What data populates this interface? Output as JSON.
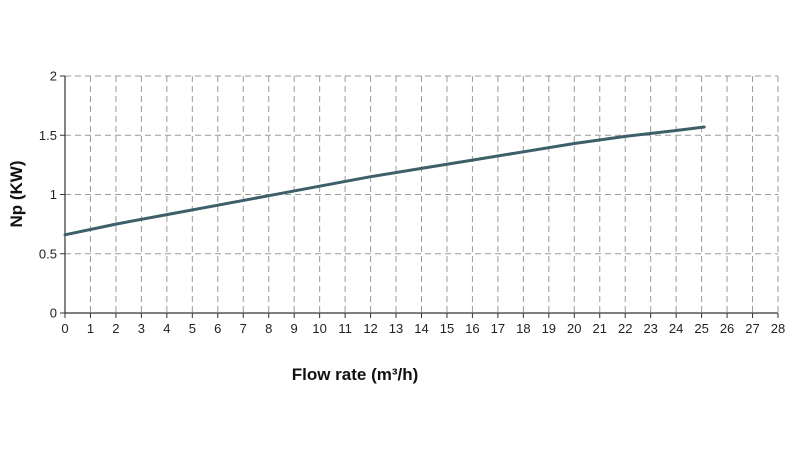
{
  "chart_data": {
    "type": "line",
    "title": "",
    "xlabel": "Flow rate (m³/h)",
    "ylabel": "Np (KW)",
    "xlim": [
      0,
      28
    ],
    "ylim": [
      0,
      2
    ],
    "x_ticks": [
      0,
      1,
      2,
      3,
      4,
      5,
      6,
      7,
      8,
      9,
      10,
      11,
      12,
      13,
      14,
      15,
      16,
      17,
      18,
      19,
      20,
      21,
      22,
      23,
      24,
      25,
      26,
      27,
      28
    ],
    "y_ticks": [
      0,
      0.5,
      1,
      1.5,
      2
    ],
    "grid": true,
    "grid_style": "dashed",
    "line_color": "#3d5f68",
    "series": [
      {
        "x": [
          0,
          2,
          4,
          6,
          8,
          10,
          12,
          14,
          16,
          18,
          20,
          22,
          24,
          25.1
        ],
        "y": [
          0.66,
          0.75,
          0.83,
          0.91,
          0.99,
          1.07,
          1.15,
          1.22,
          1.29,
          1.36,
          1.43,
          1.49,
          1.54,
          1.57
        ]
      }
    ]
  }
}
